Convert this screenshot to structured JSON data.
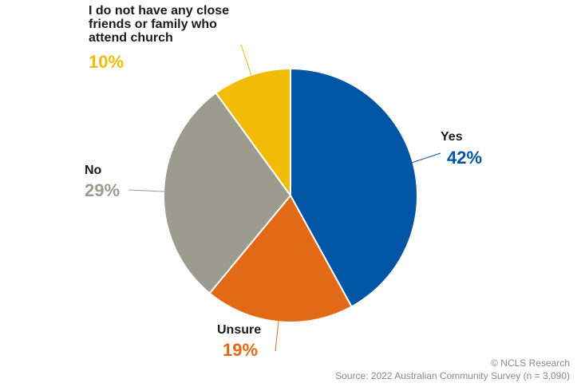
{
  "chart_data": {
    "type": "pie",
    "slices": [
      {
        "label": "Yes",
        "value": 42,
        "value_label": "42%",
        "color": "#0055a5"
      },
      {
        "label": "Unsure",
        "value": 19,
        "value_label": "19%",
        "color": "#e26a16"
      },
      {
        "label": "No",
        "value": 29,
        "value_label": "29%",
        "color": "#9b9b8e"
      },
      {
        "label": "I do not have any close friends or family who attend church",
        "label_lines": [
          "I do not have any close",
          "friends or family who",
          "attend church"
        ],
        "value": 10,
        "value_label": "10%",
        "color": "#f2bb05"
      }
    ],
    "start": "12 o'clock",
    "direction": "clockwise",
    "legend": "none"
  },
  "footer": {
    "copyright": "© NCLS Research",
    "source": "Source: 2022 Australian Community Survey (n = 3,090)"
  }
}
